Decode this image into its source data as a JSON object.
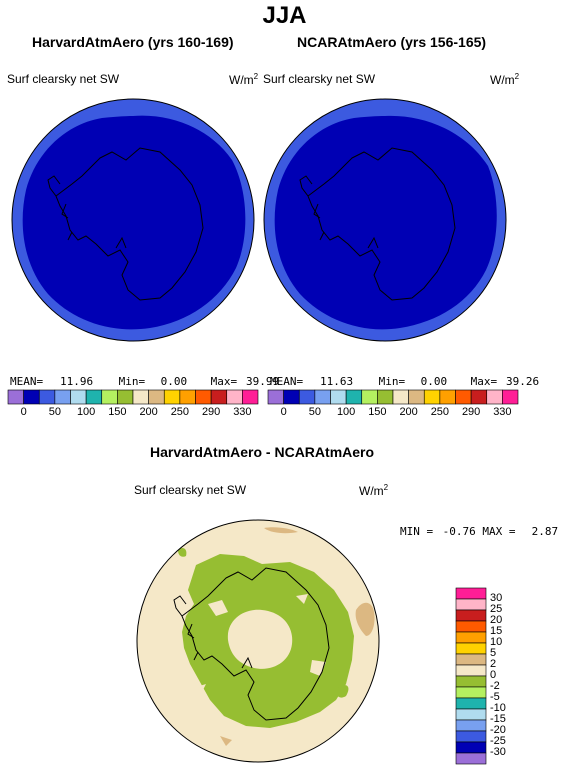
{
  "figure": {
    "title": "JJA",
    "variable": "Surf clearsky net SW",
    "units_base": "W/m",
    "units_exp": "2"
  },
  "panels": [
    {
      "title": "HarvardAtmAero (yrs 160-169)",
      "stats": {
        "mean_label": "MEAN=",
        "mean": "11.96",
        "min_label": "Min=",
        "min": "0.00",
        "max_label": "Max=",
        "max": "39.99"
      }
    },
    {
      "title": "NCARAtmAero (yrs 156-165)",
      "stats": {
        "mean_label": "MEAN=",
        "mean": "11.63",
        "min_label": "Min=",
        "min": "0.00",
        "max_label": "Max=",
        "max": "39.26"
      }
    }
  ],
  "diff": {
    "title": "HarvardAtmAero - NCARAtmAero",
    "min_label": "MIN =",
    "min": "-0.76",
    "max_label": "MAX =",
    "max": "2.87"
  },
  "colorbar_top": {
    "colors": [
      "#9b6fd8",
      "#0000b4",
      "#3c5ae0",
      "#78a0f0",
      "#b0dcef",
      "#1fb3ad",
      "#b4f060",
      "#96be32",
      "#f5e8c8",
      "#dcb882",
      "#ffd200",
      "#ffa000",
      "#ff5a00",
      "#c81e1e",
      "#ffb4c8",
      "#ff1e96"
    ],
    "ticks": [
      "0",
      "50",
      "100",
      "150",
      "200",
      "250",
      "290",
      "330"
    ]
  },
  "colorbar_diff": {
    "colors": [
      "#ff1e96",
      "#ffb4c8",
      "#c81e1e",
      "#ff5a00",
      "#ffa000",
      "#ffd200",
      "#dcb882",
      "#f5e8c8",
      "#96be32",
      "#b4f060",
      "#1fb3ad",
      "#b0dcef",
      "#78a0f0",
      "#3c5ae0",
      "#0000b4",
      "#9b6fd8"
    ],
    "ticks": [
      "30",
      "25",
      "20",
      "15",
      "10",
      "5",
      "2",
      "0",
      "-2",
      "-5",
      "-10",
      "-15",
      "-20",
      "-25",
      "-30"
    ]
  },
  "map_colors": {
    "field_inner": "#0000b4",
    "field_ring": "#3c5ae0",
    "diff_background": "#f5e8c8",
    "diff_positive": "#96be32",
    "diff_light": "#dcb882",
    "coastline": "#000000"
  }
}
